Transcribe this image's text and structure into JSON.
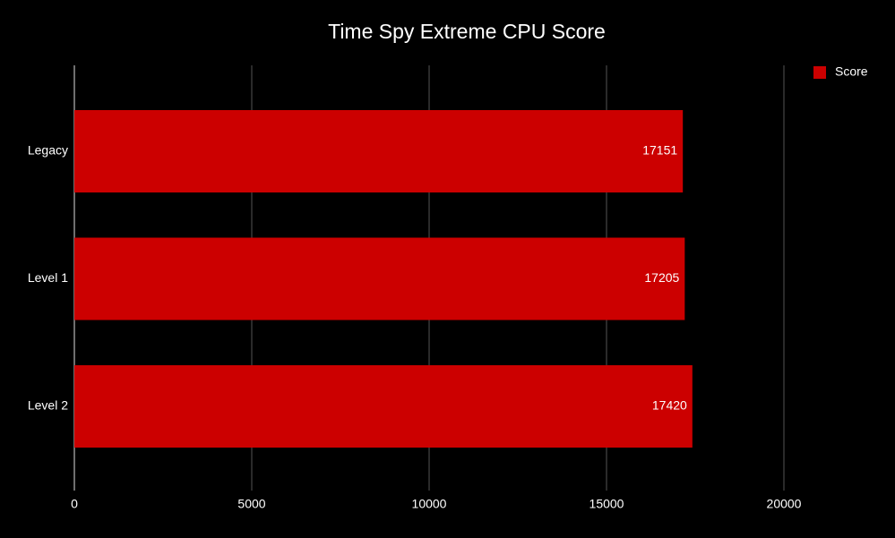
{
  "chart_data": {
    "type": "bar",
    "horizontal": true,
    "title": "Time Spy Extreme CPU Score",
    "categories": [
      "Legacy",
      "Level 1",
      "Level 2"
    ],
    "series": [
      {
        "name": "Score",
        "color": "#cc0000",
        "values": [
          17151,
          17205,
          17420
        ]
      }
    ],
    "xlim": [
      0,
      20000
    ],
    "xticks": [
      0,
      5000,
      10000,
      15000,
      20000
    ],
    "grid": true,
    "legend": "top-right"
  }
}
